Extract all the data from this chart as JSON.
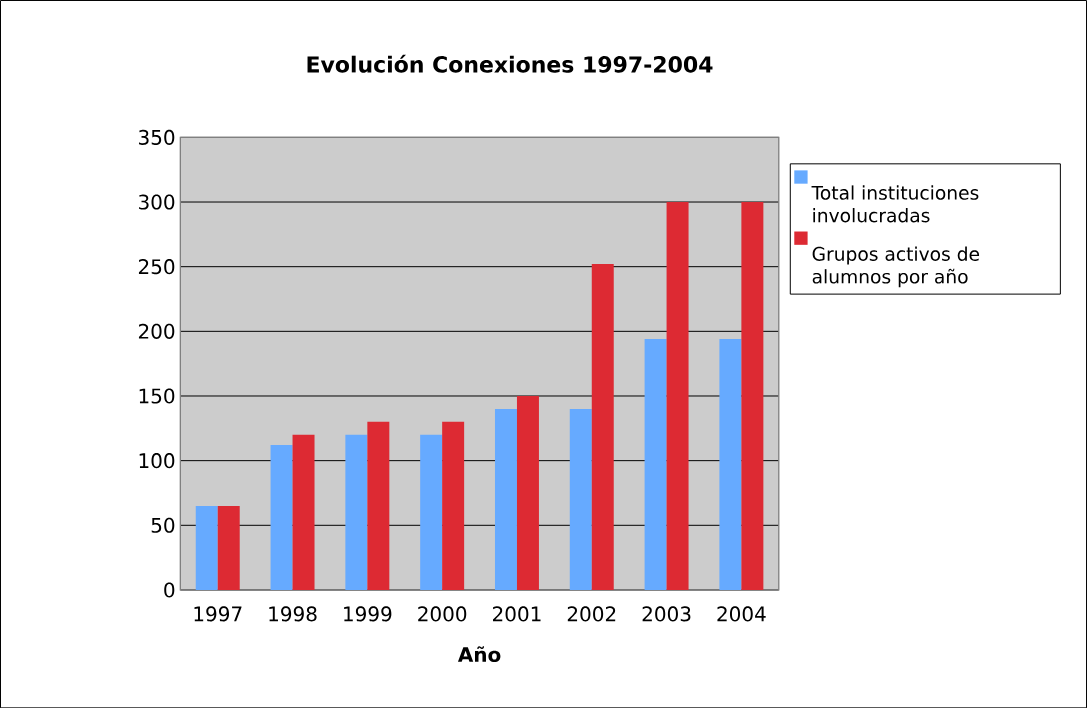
{
  "chart_data": {
    "type": "bar",
    "title": "Evolución Conexiones 1997-2004",
    "xlabel": "Año",
    "categories": [
      "1997",
      "1998",
      "1999",
      "2000",
      "2001",
      "2002",
      "2003",
      "2004"
    ],
    "series": [
      {
        "name": "Total instituciones involucradas",
        "color": "#66aaff",
        "values": [
          65,
          112,
          120,
          120,
          140,
          140,
          194,
          194
        ]
      },
      {
        "name": "Grupos activos de alumnos por año",
        "color": "#dd2a33",
        "values": [
          65,
          120,
          130,
          130,
          150,
          252,
          300,
          300
        ]
      }
    ],
    "ylim": [
      0,
      350
    ],
    "yticks": [
      0,
      50,
      100,
      150,
      200,
      250,
      300,
      350
    ],
    "grid": "y",
    "legend": "right"
  }
}
